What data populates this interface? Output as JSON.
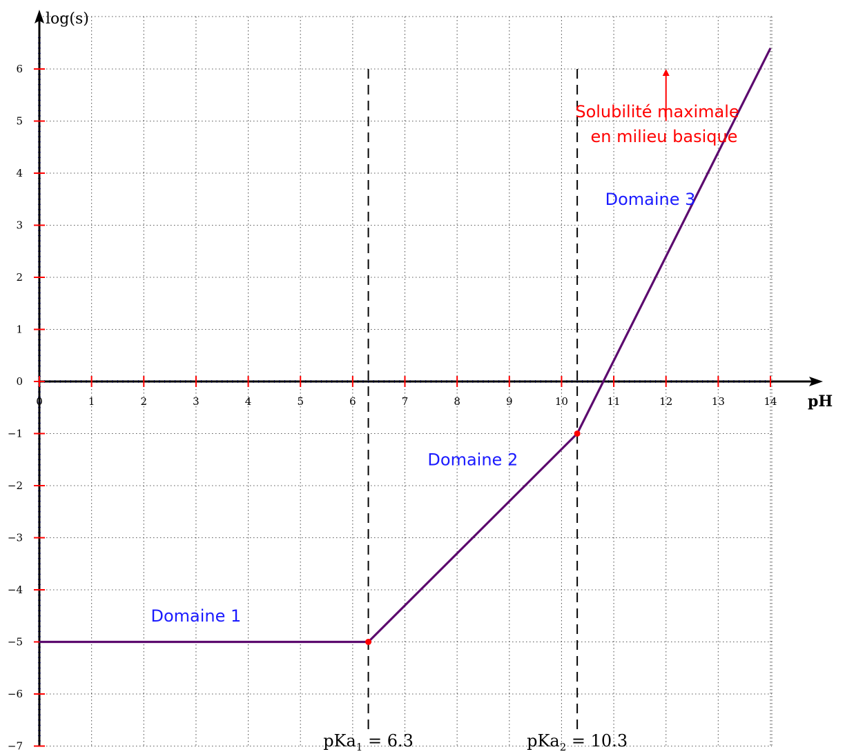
{
  "chart_data": {
    "type": "line",
    "xlabel": "pH",
    "ylabel": "log(s)",
    "xlim": [
      0,
      14
    ],
    "ylim": [
      -7,
      6.5
    ],
    "x_ticks": [
      0,
      1,
      2,
      3,
      4,
      5,
      6,
      7,
      8,
      9,
      10,
      11,
      12,
      13,
      14
    ],
    "y_ticks": [
      -7,
      -6,
      -5,
      -4,
      -3,
      -2,
      -1,
      0,
      1,
      2,
      3,
      4,
      5,
      6
    ],
    "y_tick_labels": [
      "−7",
      "−6",
      "−5",
      "−4",
      "−3",
      "−2",
      "−1",
      "0",
      "1",
      "2",
      "3",
      "4",
      "5",
      "6"
    ],
    "grid": true,
    "series": [
      {
        "color": "#5c0a6e",
        "x": [
          0,
          6.3,
          10.3,
          14
        ],
        "y": [
          -5,
          -5,
          -1,
          6.4
        ]
      }
    ],
    "key_points": [
      {
        "x": 6.3,
        "y": -5,
        "color": "#ff0000"
      },
      {
        "x": 10.3,
        "y": -1,
        "color": "#ff0000"
      }
    ],
    "vertical_lines": [
      {
        "x": 6.3,
        "label_main": "pKa",
        "label_sub": "1",
        "label_rest": " = 6.3"
      },
      {
        "x": 10.3,
        "label_main": "pKa",
        "label_sub": "2",
        "label_rest": " = 10.3"
      }
    ],
    "domains": [
      {
        "text": "Domaine 1",
        "x": 3,
        "y": -4.5
      },
      {
        "text": "Domaine 2",
        "x": 8.3,
        "y": -1.5
      },
      {
        "text": "Domaine 3",
        "x": 11.7,
        "y": 3.5
      }
    ],
    "annotation": {
      "line1": "Solubilité maximale",
      "line2": "en milieu basique",
      "color": "#ff0000",
      "arrow_x": 12,
      "arrow_from_y": 5,
      "arrow_to_y": 6
    }
  }
}
